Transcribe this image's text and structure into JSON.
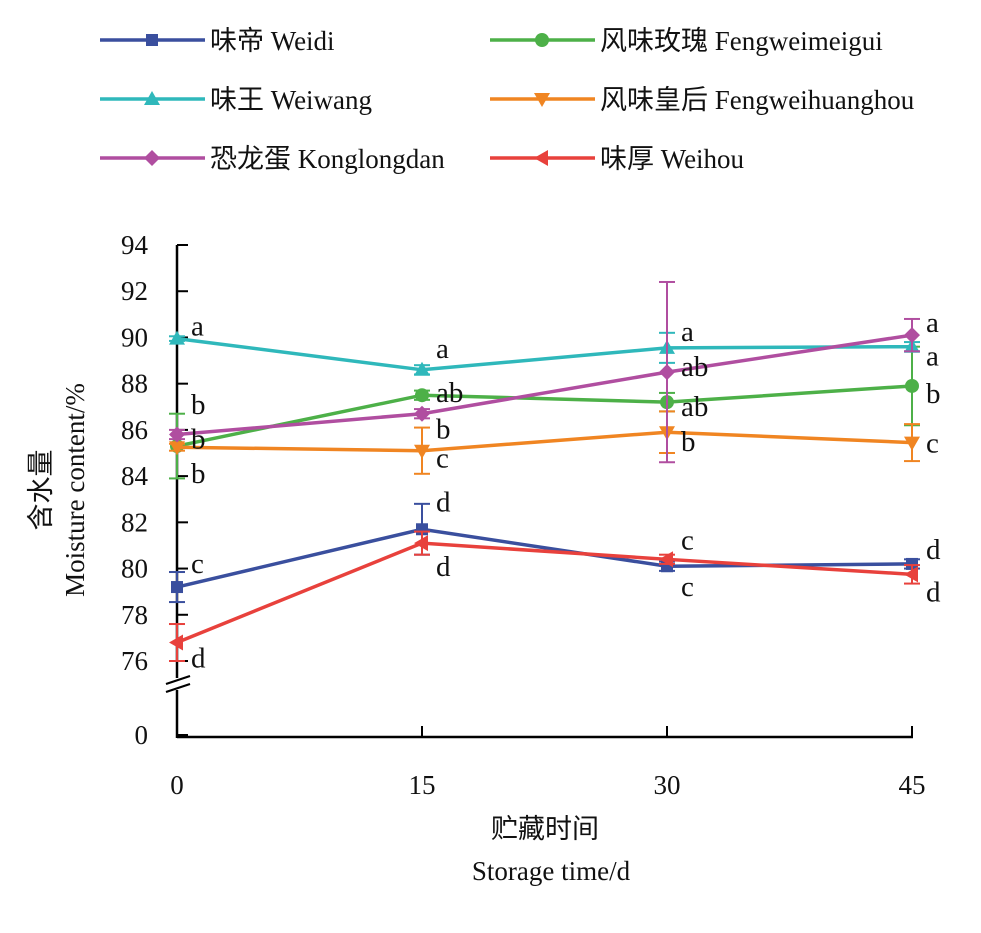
{
  "chart_data": {
    "type": "line",
    "title": "",
    "xlabel_cn": "贮藏时间",
    "xlabel": "Storage time/d",
    "ylabel_cn": "含水量",
    "ylabel": "Moisture content/%",
    "x": [
      0,
      15,
      30,
      45
    ],
    "x_ticks": [
      "0",
      "15",
      "30",
      "45"
    ],
    "y_ticks": [
      "0",
      "76",
      "78",
      "80",
      "82",
      "84",
      "86",
      "88",
      "90",
      "92",
      "94"
    ],
    "ylim": [
      76,
      94
    ],
    "y_axis_break": "between 0 and 76",
    "grid": false,
    "legend_position": "top",
    "series": [
      {
        "name": "味帝 Weidi",
        "color": "#3a4f9e",
        "marker": "square",
        "values": [
          79.2,
          81.7,
          80.1,
          80.2
        ],
        "error": [
          0.65,
          1.1,
          0.2,
          0.2
        ],
        "letters": [
          "c",
          "d",
          "c",
          "d"
        ]
      },
      {
        "name": "风味玫瑰 Fengweimeigui",
        "color": "#4db048",
        "marker": "circle",
        "values": [
          85.3,
          87.5,
          87.2,
          87.9
        ],
        "error": [
          1.4,
          0.2,
          0.4,
          1.7
        ],
        "letters": [
          "b",
          "ab",
          "ab",
          "b"
        ]
      },
      {
        "name": "味王 Weiwang",
        "color": "#2fb8bb",
        "marker": "triangle-up",
        "values": [
          89.95,
          88.6,
          89.55,
          89.6
        ],
        "error": [
          0.1,
          0.2,
          0.65,
          0.2
        ],
        "letters": [
          "a",
          "a",
          "a",
          "a"
        ]
      },
      {
        "name": "风味皇后 Fengweihuanghou",
        "color": "#f08522",
        "marker": "triangle-down",
        "values": [
          85.25,
          85.1,
          85.9,
          85.45
        ],
        "error": [
          0.15,
          1.0,
          0.9,
          0.8
        ],
        "letters": [
          "b",
          "c",
          "b",
          "c"
        ]
      },
      {
        "name": "恐龙蛋 Konglongdan",
        "color": "#b04ea0",
        "marker": "diamond",
        "values": [
          85.8,
          86.7,
          88.5,
          90.1
        ],
        "error": [
          0.2,
          0.2,
          3.9,
          0.7
        ],
        "letters": [
          "b",
          "b",
          "ab",
          "a"
        ]
      },
      {
        "name": "味厚 Weihou",
        "color": "#e8413c",
        "marker": "triangle-left",
        "values": [
          76.8,
          81.1,
          80.4,
          79.75
        ],
        "error": [
          0.8,
          0.5,
          0.2,
          0.4
        ],
        "letters": [
          "d",
          "d",
          "c",
          "d"
        ]
      }
    ]
  }
}
